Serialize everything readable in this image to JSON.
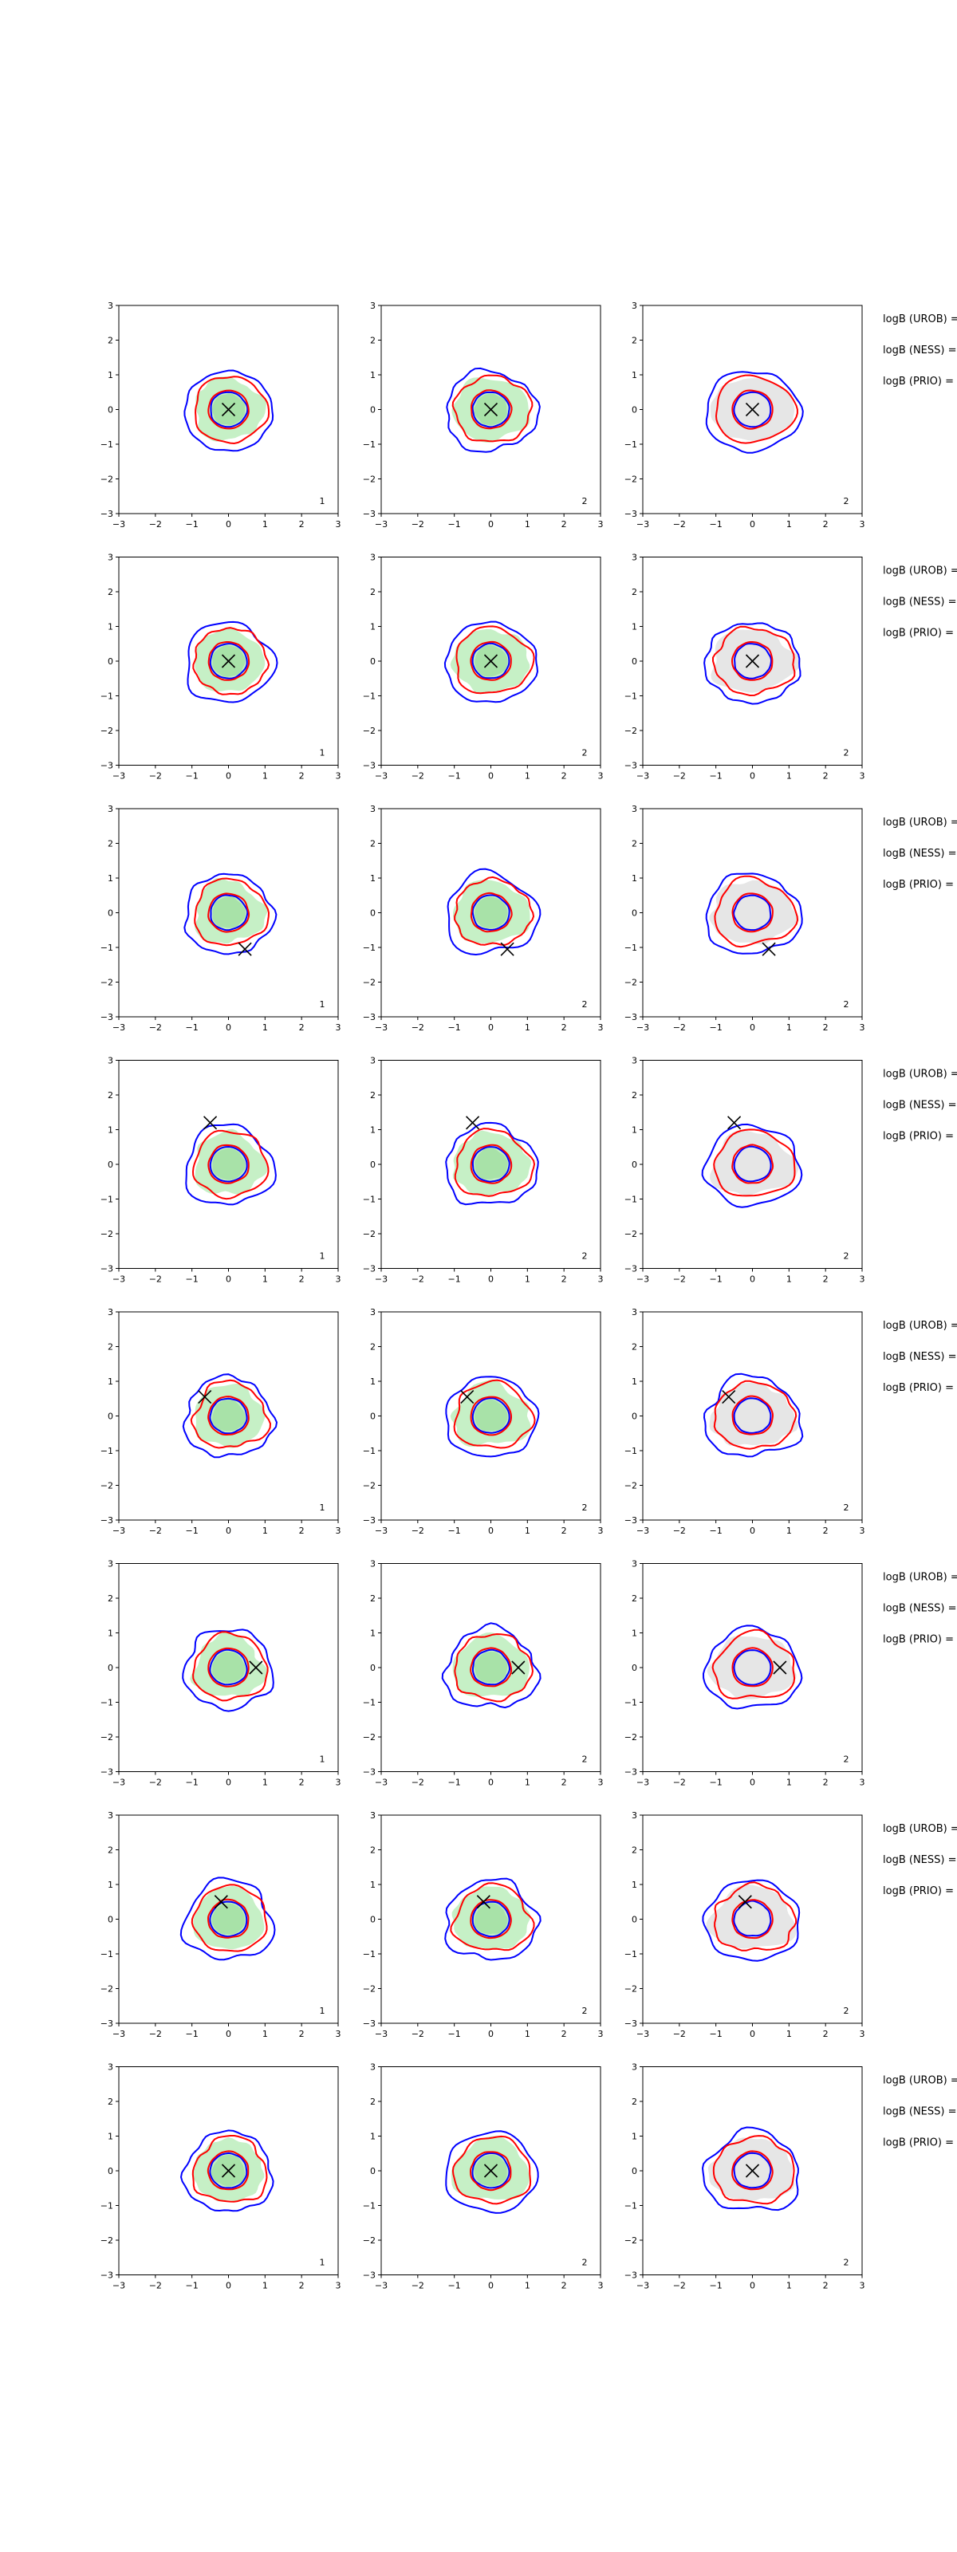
{
  "figure": {
    "colors": {
      "blue_contour": "#0000ff",
      "red_contour": "#ff0000",
      "green_fill": "#c6f0c6",
      "green_fill_inner": "#a8e2a8",
      "gray_fill": "#e6e6e6",
      "axes": "#000000",
      "marker": "#000000"
    },
    "logb_labels": [
      "logB (UROB) =",
      "logB (NESS) =",
      "logB (PRIO) ="
    ]
  },
  "chart_data": [
    {
      "type": "contour",
      "row": 1,
      "panels": [
        {
          "col": 1,
          "fill": "green",
          "marker": [
            0,
            0
          ],
          "label": "1",
          "xlim": [
            -3,
            3
          ],
          "ylim": [
            -3,
            3
          ],
          "xticks": [
            -3,
            -2,
            -1,
            0,
            1,
            2,
            3
          ],
          "yticks": [
            3,
            2,
            1,
            0,
            -1,
            -2,
            -3
          ]
        },
        {
          "col": 2,
          "fill": "green",
          "marker": [
            0,
            0
          ],
          "label": "2",
          "xlim": [
            -3,
            3
          ],
          "ylim": [
            -3,
            3
          ],
          "xticks": [
            -3,
            -2,
            -1,
            0,
            1,
            2,
            3
          ],
          "yticks": [
            3,
            2,
            1,
            0,
            -1,
            -2,
            -3
          ]
        },
        {
          "col": 3,
          "fill": "gray",
          "marker": [
            0,
            0
          ],
          "label": "2",
          "xlim": [
            -3,
            3
          ],
          "ylim": [
            -3,
            3
          ],
          "xticks": [
            -3,
            -2,
            -1,
            0,
            1,
            2,
            3
          ],
          "yticks": [
            3,
            2,
            1,
            0,
            -1,
            -2,
            -3
          ]
        }
      ]
    },
    {
      "type": "contour",
      "row": 2,
      "panels": [
        {
          "col": 1,
          "fill": "green",
          "marker": [
            0,
            0
          ],
          "label": "1",
          "xlim": [
            -3,
            3
          ],
          "ylim": [
            -3,
            3
          ],
          "xticks": [
            -3,
            -2,
            -1,
            0,
            1,
            2,
            3
          ],
          "yticks": [
            3,
            2,
            1,
            0,
            -1,
            -2,
            -3
          ]
        },
        {
          "col": 2,
          "fill": "green",
          "marker": [
            0,
            0
          ],
          "label": "2",
          "xlim": [
            -3,
            3
          ],
          "ylim": [
            -3,
            3
          ],
          "xticks": [
            -3,
            -2,
            -1,
            0,
            1,
            2,
            3
          ],
          "yticks": [
            3,
            2,
            1,
            0,
            -1,
            -2,
            -3
          ]
        },
        {
          "col": 3,
          "fill": "gray",
          "marker": [
            0,
            0
          ],
          "label": "2",
          "xlim": [
            -3,
            3
          ],
          "ylim": [
            -3,
            3
          ],
          "xticks": [
            -3,
            -2,
            -1,
            0,
            1,
            2,
            3
          ],
          "yticks": [
            3,
            2,
            1,
            0,
            -1,
            -2,
            -3
          ]
        }
      ]
    },
    {
      "type": "contour",
      "row": 3,
      "panels": [
        {
          "col": 1,
          "fill": "green",
          "marker": [
            0.45,
            -1.05
          ],
          "label": "1",
          "xlim": [
            -3,
            3
          ],
          "ylim": [
            -3,
            3
          ],
          "xticks": [
            -3,
            -2,
            -1,
            0,
            1,
            2,
            3
          ],
          "yticks": [
            3,
            2,
            1,
            0,
            -1,
            -2,
            -3
          ]
        },
        {
          "col": 2,
          "fill": "green",
          "marker": [
            0.45,
            -1.05
          ],
          "label": "2",
          "xlim": [
            -3,
            3
          ],
          "ylim": [
            -3,
            3
          ],
          "xticks": [
            -3,
            -2,
            -1,
            0,
            1,
            2,
            3
          ],
          "yticks": [
            3,
            2,
            1,
            0,
            -1,
            -2,
            -3
          ]
        },
        {
          "col": 3,
          "fill": "gray",
          "marker": [
            0.45,
            -1.05
          ],
          "label": "2",
          "xlim": [
            -3,
            3
          ],
          "ylim": [
            -3,
            3
          ],
          "xticks": [
            -3,
            -2,
            -1,
            0,
            1,
            2,
            3
          ],
          "yticks": [
            3,
            2,
            1,
            0,
            -1,
            -2,
            -3
          ]
        }
      ]
    },
    {
      "type": "contour",
      "row": 4,
      "panels": [
        {
          "col": 1,
          "fill": "green",
          "marker": [
            -0.5,
            1.2
          ],
          "label": "1",
          "xlim": [
            -3,
            3
          ],
          "ylim": [
            -3,
            3
          ],
          "xticks": [
            -3,
            -2,
            -1,
            0,
            1,
            2,
            3
          ],
          "yticks": [
            3,
            2,
            1,
            0,
            -1,
            -2,
            -3
          ]
        },
        {
          "col": 2,
          "fill": "green",
          "marker": [
            -0.5,
            1.2
          ],
          "label": "2",
          "xlim": [
            -3,
            3
          ],
          "ylim": [
            -3,
            3
          ],
          "xticks": [
            -3,
            -2,
            -1,
            0,
            1,
            2,
            3
          ],
          "yticks": [
            3,
            2,
            1,
            0,
            -1,
            -2,
            -3
          ]
        },
        {
          "col": 3,
          "fill": "gray",
          "marker": [
            -0.5,
            1.2
          ],
          "label": "2",
          "xlim": [
            -3,
            3
          ],
          "ylim": [
            -3,
            3
          ],
          "xticks": [
            -3,
            -2,
            -1,
            0,
            1,
            2,
            3
          ],
          "yticks": [
            3,
            2,
            1,
            0,
            -1,
            -2,
            -3
          ]
        }
      ]
    },
    {
      "type": "contour",
      "row": 5,
      "panels": [
        {
          "col": 1,
          "fill": "green",
          "marker": [
            -0.65,
            0.55
          ],
          "label": "1",
          "xlim": [
            -3,
            3
          ],
          "ylim": [
            -3,
            3
          ],
          "xticks": [
            -3,
            -2,
            -1,
            0,
            1,
            2,
            3
          ],
          "yticks": [
            3,
            2,
            1,
            0,
            -1,
            -2,
            -3
          ]
        },
        {
          "col": 2,
          "fill": "green",
          "marker": [
            -0.65,
            0.55
          ],
          "label": "2",
          "xlim": [
            -3,
            3
          ],
          "ylim": [
            -3,
            3
          ],
          "xticks": [
            -3,
            -2,
            -1,
            0,
            1,
            2,
            3
          ],
          "yticks": [
            3,
            2,
            1,
            0,
            -1,
            -2,
            -3
          ]
        },
        {
          "col": 3,
          "fill": "gray",
          "marker": [
            -0.65,
            0.55
          ],
          "label": "2",
          "xlim": [
            -3,
            3
          ],
          "ylim": [
            -3,
            3
          ],
          "xticks": [
            -3,
            -2,
            -1,
            0,
            1,
            2,
            3
          ],
          "yticks": [
            3,
            2,
            1,
            0,
            -1,
            -2,
            -3
          ]
        }
      ]
    },
    {
      "type": "contour",
      "row": 6,
      "panels": [
        {
          "col": 1,
          "fill": "green",
          "marker": [
            0.75,
            0.0
          ],
          "label": "1",
          "xlim": [
            -3,
            3
          ],
          "ylim": [
            -3,
            3
          ],
          "xticks": [
            -3,
            -2,
            -1,
            0,
            1,
            2,
            3
          ],
          "yticks": [
            3,
            2,
            1,
            0,
            -1,
            -2,
            -3
          ]
        },
        {
          "col": 2,
          "fill": "green",
          "marker": [
            0.75,
            0.0
          ],
          "label": "2",
          "xlim": [
            -3,
            3
          ],
          "ylim": [
            -3,
            3
          ],
          "xticks": [
            -3,
            -2,
            -1,
            0,
            1,
            2,
            3
          ],
          "yticks": [
            3,
            2,
            1,
            0,
            -1,
            -2,
            -3
          ]
        },
        {
          "col": 3,
          "fill": "gray",
          "marker": [
            0.75,
            0.0
          ],
          "label": "2",
          "xlim": [
            -3,
            3
          ],
          "ylim": [
            -3,
            3
          ],
          "xticks": [
            -3,
            -2,
            -1,
            0,
            1,
            2,
            3
          ],
          "yticks": [
            3,
            2,
            1,
            0,
            -1,
            -2,
            -3
          ]
        }
      ]
    },
    {
      "type": "contour",
      "row": 7,
      "panels": [
        {
          "col": 1,
          "fill": "green",
          "marker": [
            -0.2,
            0.5
          ],
          "label": "1",
          "xlim": [
            -3,
            3
          ],
          "ylim": [
            -3,
            3
          ],
          "xticks": [
            -3,
            -2,
            -1,
            0,
            1,
            2,
            3
          ],
          "yticks": [
            3,
            2,
            1,
            0,
            -1,
            -2,
            -3
          ]
        },
        {
          "col": 2,
          "fill": "green",
          "marker": [
            -0.2,
            0.5
          ],
          "label": "2",
          "xlim": [
            -3,
            3
          ],
          "ylim": [
            -3,
            3
          ],
          "xticks": [
            -3,
            -2,
            -1,
            0,
            1,
            2,
            3
          ],
          "yticks": [
            3,
            2,
            1,
            0,
            -1,
            -2,
            -3
          ]
        },
        {
          "col": 3,
          "fill": "gray",
          "marker": [
            -0.2,
            0.5
          ],
          "label": "2",
          "xlim": [
            -3,
            3
          ],
          "ylim": [
            -3,
            3
          ],
          "xticks": [
            -3,
            -2,
            -1,
            0,
            1,
            2,
            3
          ],
          "yticks": [
            3,
            2,
            1,
            0,
            -1,
            -2,
            -3
          ]
        }
      ]
    },
    {
      "type": "contour",
      "row": 8,
      "panels": [
        {
          "col": 1,
          "fill": "green",
          "marker": [
            0,
            0
          ],
          "label": "1",
          "xlim": [
            -3,
            3
          ],
          "ylim": [
            -3,
            3
          ],
          "xticks": [
            -3,
            -2,
            -1,
            0,
            1,
            2,
            3
          ],
          "yticks": [
            3,
            2,
            1,
            0,
            -1,
            -2,
            -3
          ]
        },
        {
          "col": 2,
          "fill": "green",
          "marker": [
            0,
            0
          ],
          "label": "2",
          "xlim": [
            -3,
            3
          ],
          "ylim": [
            -3,
            3
          ],
          "xticks": [
            -3,
            -2,
            -1,
            0,
            1,
            2,
            3
          ],
          "yticks": [
            3,
            2,
            1,
            0,
            -1,
            -2,
            -3
          ]
        },
        {
          "col": 3,
          "fill": "gray",
          "marker": [
            0,
            0
          ],
          "label": "2",
          "xlim": [
            -3,
            3
          ],
          "ylim": [
            -3,
            3
          ],
          "xticks": [
            -3,
            -2,
            -1,
            0,
            1,
            2,
            3
          ],
          "yticks": [
            3,
            2,
            1,
            0,
            -1,
            -2,
            -3
          ]
        }
      ]
    }
  ]
}
